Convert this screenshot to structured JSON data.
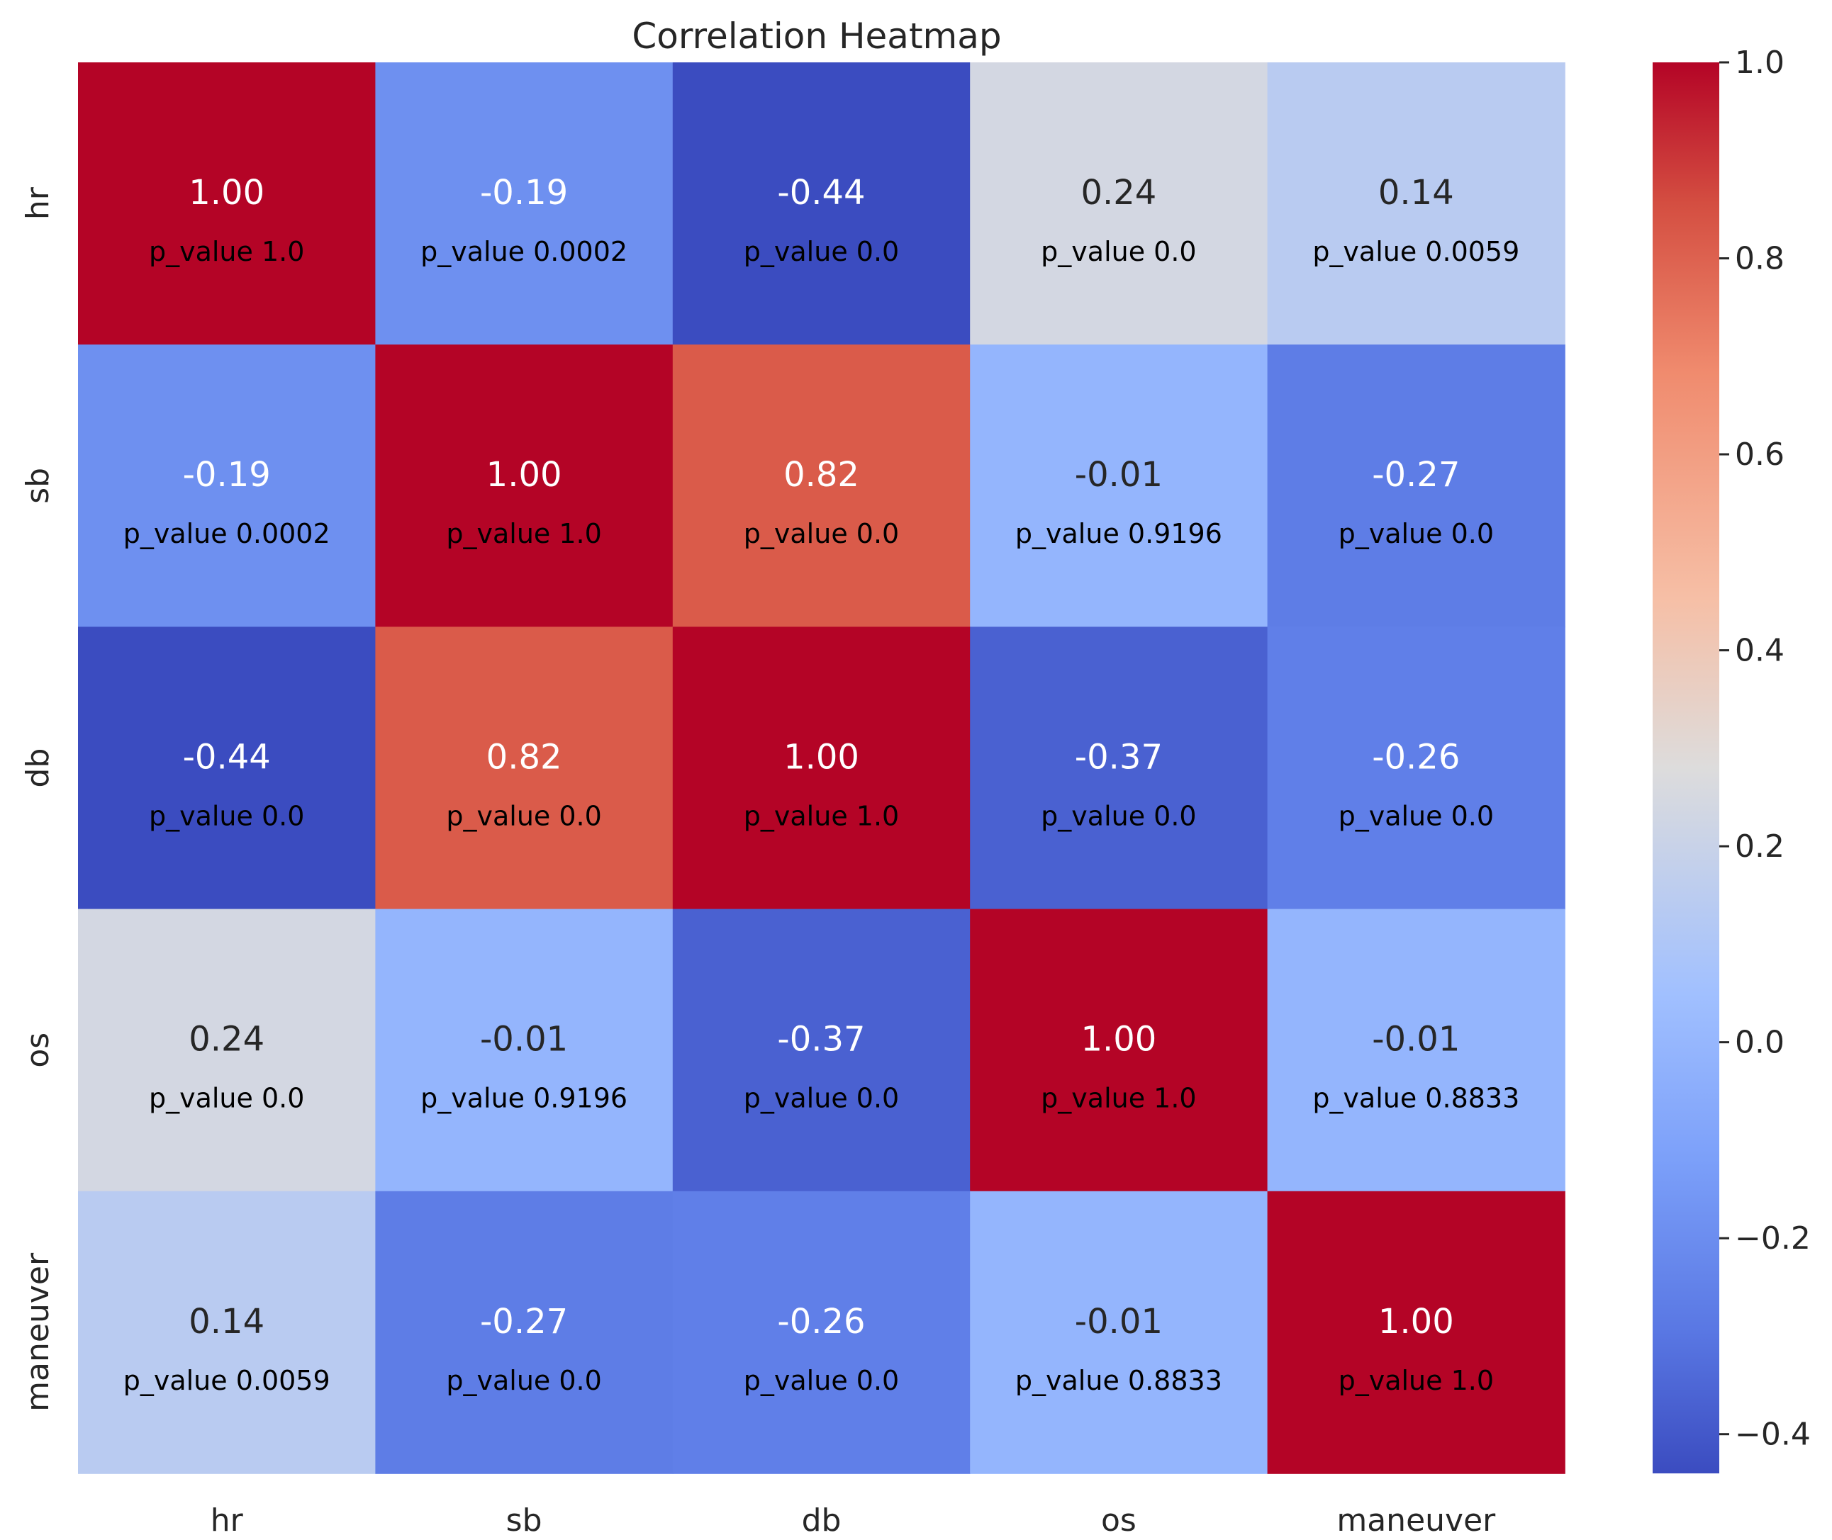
{
  "chart_data": {
    "type": "heatmap",
    "title": "Correlation Heatmap",
    "xlabel": "",
    "ylabel": "",
    "x_categories": [
      "hr",
      "sb",
      "db",
      "os",
      "maneuver"
    ],
    "y_categories": [
      "hr",
      "sb",
      "db",
      "os",
      "maneuver"
    ],
    "value_labels": [
      [
        "1.00",
        "-0.19",
        "-0.44",
        "0.24",
        "0.14"
      ],
      [
        "-0.19",
        "1.00",
        "0.82",
        "-0.01",
        "-0.27"
      ],
      [
        "-0.44",
        "0.82",
        "1.00",
        "-0.37",
        "-0.26"
      ],
      [
        "0.24",
        "-0.01",
        "-0.37",
        "1.00",
        "-0.01"
      ],
      [
        "0.14",
        "-0.27",
        "-0.26",
        "-0.01",
        "1.00"
      ]
    ],
    "p_value_labels": [
      [
        "p_value 1.0",
        "p_value 0.0002",
        "p_value 0.0",
        "p_value 0.0",
        "p_value 0.0059"
      ],
      [
        "p_value 0.0002",
        "p_value 1.0",
        "p_value 0.0",
        "p_value 0.9196",
        "p_value 0.0"
      ],
      [
        "p_value 0.0",
        "p_value 0.0",
        "p_value 1.0",
        "p_value 0.0",
        "p_value 0.0"
      ],
      [
        "p_value 0.0",
        "p_value 0.9196",
        "p_value 0.0",
        "p_value 1.0",
        "p_value 0.8833"
      ],
      [
        "p_value 0.0059",
        "p_value 0.0",
        "p_value 0.0",
        "p_value 0.8833",
        "p_value 1.0"
      ]
    ],
    "colormap": "coolwarm",
    "vmin": -0.44,
    "vmax": 1.0,
    "colorbar": {
      "ticks": [
        1.0,
        0.8,
        0.6,
        0.4,
        0.2,
        0.0,
        -0.2,
        -0.4
      ],
      "tick_labels": [
        "1.0",
        "0.8",
        "0.6",
        "0.4",
        "0.2",
        "0.0",
        "−0.2",
        "−0.4"
      ]
    },
    "grid": false
  }
}
